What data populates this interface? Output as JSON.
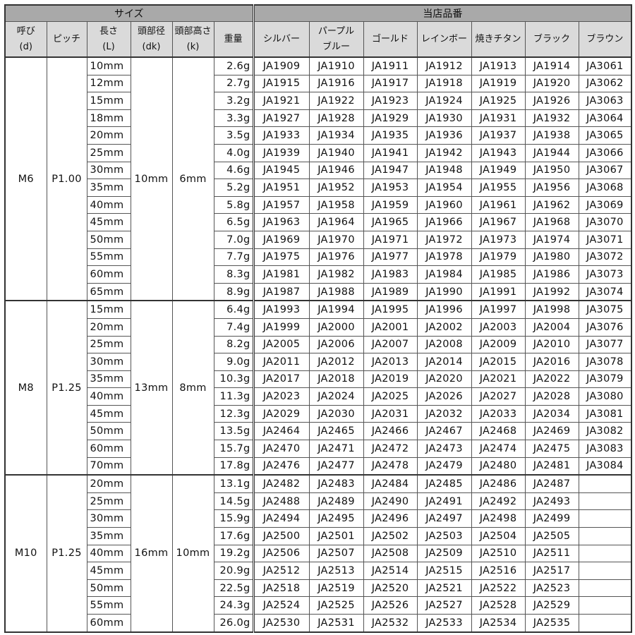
{
  "header": {
    "size_group": "サイズ",
    "code_group": "当店品番",
    "columns": {
      "nominal": [
        "呼び",
        "(d)"
      ],
      "pitch": [
        "ピッチ"
      ],
      "length": [
        "長さ",
        "(L)"
      ],
      "head_dia": [
        "頭部径",
        "(dk)"
      ],
      "head_height": [
        "頭部高さ",
        "(k)"
      ],
      "weight": [
        "重量"
      ],
      "colors": [
        [
          "シルバー"
        ],
        [
          "パープル",
          "ブルー"
        ],
        [
          "ゴールド"
        ],
        [
          "レインボー"
        ],
        [
          "焼きチタン"
        ],
        [
          "ブラック"
        ],
        [
          "ブラウン"
        ]
      ]
    }
  },
  "groups": [
    {
      "nominal": "M6",
      "pitch": "P1.00",
      "dk": "10mm",
      "k": "6mm",
      "rows": [
        {
          "length": "10mm",
          "weight": "2.6g",
          "codes": [
            "JA1909",
            "JA1910",
            "JA1911",
            "JA1912",
            "JA1913",
            "JA1914",
            "JA3061"
          ]
        },
        {
          "length": "12mm",
          "weight": "2.7g",
          "codes": [
            "JA1915",
            "JA1916",
            "JA1917",
            "JA1918",
            "JA1919",
            "JA1920",
            "JA3062"
          ]
        },
        {
          "length": "15mm",
          "weight": "3.2g",
          "codes": [
            "JA1921",
            "JA1922",
            "JA1923",
            "JA1924",
            "JA1925",
            "JA1926",
            "JA3063"
          ]
        },
        {
          "length": "18mm",
          "weight": "3.3g",
          "codes": [
            "JA1927",
            "JA1928",
            "JA1929",
            "JA1930",
            "JA1931",
            "JA1932",
            "JA3064"
          ]
        },
        {
          "length": "20mm",
          "weight": "3.5g",
          "codes": [
            "JA1933",
            "JA1934",
            "JA1935",
            "JA1936",
            "JA1937",
            "JA1938",
            "JA3065"
          ]
        },
        {
          "length": "25mm",
          "weight": "4.0g",
          "codes": [
            "JA1939",
            "JA1940",
            "JA1941",
            "JA1942",
            "JA1943",
            "JA1944",
            "JA3066"
          ]
        },
        {
          "length": "30mm",
          "weight": "4.6g",
          "codes": [
            "JA1945",
            "JA1946",
            "JA1947",
            "JA1948",
            "JA1949",
            "JA1950",
            "JA3067"
          ]
        },
        {
          "length": "35mm",
          "weight": "5.2g",
          "codes": [
            "JA1951",
            "JA1952",
            "JA1953",
            "JA1954",
            "JA1955",
            "JA1956",
            "JA3068"
          ]
        },
        {
          "length": "40mm",
          "weight": "5.8g",
          "codes": [
            "JA1957",
            "JA1958",
            "JA1959",
            "JA1960",
            "JA1961",
            "JA1962",
            "JA3069"
          ]
        },
        {
          "length": "45mm",
          "weight": "6.5g",
          "codes": [
            "JA1963",
            "JA1964",
            "JA1965",
            "JA1966",
            "JA1967",
            "JA1968",
            "JA3070"
          ]
        },
        {
          "length": "50mm",
          "weight": "7.0g",
          "codes": [
            "JA1969",
            "JA1970",
            "JA1971",
            "JA1972",
            "JA1973",
            "JA1974",
            "JA3071"
          ]
        },
        {
          "length": "55mm",
          "weight": "7.7g",
          "codes": [
            "JA1975",
            "JA1976",
            "JA1977",
            "JA1978",
            "JA1979",
            "JA1980",
            "JA3072"
          ]
        },
        {
          "length": "60mm",
          "weight": "8.3g",
          "codes": [
            "JA1981",
            "JA1982",
            "JA1983",
            "JA1984",
            "JA1985",
            "JA1986",
            "JA3073"
          ]
        },
        {
          "length": "65mm",
          "weight": "8.9g",
          "codes": [
            "JA1987",
            "JA1988",
            "JA1989",
            "JA1990",
            "JA1991",
            "JA1992",
            "JA3074"
          ]
        }
      ]
    },
    {
      "nominal": "M8",
      "pitch": "P1.25",
      "dk": "13mm",
      "k": "8mm",
      "rows": [
        {
          "length": "15mm",
          "weight": "6.4g",
          "codes": [
            "JA1993",
            "JA1994",
            "JA1995",
            "JA1996",
            "JA1997",
            "JA1998",
            "JA3075"
          ]
        },
        {
          "length": "20mm",
          "weight": "7.4g",
          "codes": [
            "JA1999",
            "JA2000",
            "JA2001",
            "JA2002",
            "JA2003",
            "JA2004",
            "JA3076"
          ]
        },
        {
          "length": "25mm",
          "weight": "8.2g",
          "codes": [
            "JA2005",
            "JA2006",
            "JA2007",
            "JA2008",
            "JA2009",
            "JA2010",
            "JA3077"
          ]
        },
        {
          "length": "30mm",
          "weight": "9.0g",
          "codes": [
            "JA2011",
            "JA2012",
            "JA2013",
            "JA2014",
            "JA2015",
            "JA2016",
            "JA3078"
          ]
        },
        {
          "length": "35mm",
          "weight": "10.3g",
          "codes": [
            "JA2017",
            "JA2018",
            "JA2019",
            "JA2020",
            "JA2021",
            "JA2022",
            "JA3079"
          ]
        },
        {
          "length": "40mm",
          "weight": "11.3g",
          "codes": [
            "JA2023",
            "JA2024",
            "JA2025",
            "JA2026",
            "JA2027",
            "JA2028",
            "JA3080"
          ]
        },
        {
          "length": "45mm",
          "weight": "12.3g",
          "codes": [
            "JA2029",
            "JA2030",
            "JA2031",
            "JA2032",
            "JA2033",
            "JA2034",
            "JA3081"
          ]
        },
        {
          "length": "50mm",
          "weight": "13.5g",
          "codes": [
            "JA2464",
            "JA2465",
            "JA2466",
            "JA2467",
            "JA2468",
            "JA2469",
            "JA3082"
          ]
        },
        {
          "length": "60mm",
          "weight": "15.7g",
          "codes": [
            "JA2470",
            "JA2471",
            "JA2472",
            "JA2473",
            "JA2474",
            "JA2475",
            "JA3083"
          ]
        },
        {
          "length": "70mm",
          "weight": "17.8g",
          "codes": [
            "JA2476",
            "JA2477",
            "JA2478",
            "JA2479",
            "JA2480",
            "JA2481",
            "JA3084"
          ]
        }
      ]
    },
    {
      "nominal": "M10",
      "pitch": "P1.25",
      "dk": "16mm",
      "k": "10mm",
      "rows": [
        {
          "length": "20mm",
          "weight": "13.1g",
          "codes": [
            "JA2482",
            "JA2483",
            "JA2484",
            "JA2485",
            "JA2486",
            "JA2487",
            ""
          ]
        },
        {
          "length": "25mm",
          "weight": "14.5g",
          "codes": [
            "JA2488",
            "JA2489",
            "JA2490",
            "JA2491",
            "JA2492",
            "JA2493",
            ""
          ]
        },
        {
          "length": "30mm",
          "weight": "15.9g",
          "codes": [
            "JA2494",
            "JA2495",
            "JA2496",
            "JA2497",
            "JA2498",
            "JA2499",
            ""
          ]
        },
        {
          "length": "35mm",
          "weight": "17.6g",
          "codes": [
            "JA2500",
            "JA2501",
            "JA2502",
            "JA2503",
            "JA2504",
            "JA2505",
            ""
          ]
        },
        {
          "length": "40mm",
          "weight": "19.2g",
          "codes": [
            "JA2506",
            "JA2507",
            "JA2508",
            "JA2509",
            "JA2510",
            "JA2511",
            ""
          ]
        },
        {
          "length": "45mm",
          "weight": "20.9g",
          "codes": [
            "JA2512",
            "JA2513",
            "JA2514",
            "JA2515",
            "JA2516",
            "JA2517",
            ""
          ]
        },
        {
          "length": "50mm",
          "weight": "22.5g",
          "codes": [
            "JA2518",
            "JA2519",
            "JA2520",
            "JA2521",
            "JA2522",
            "JA2523",
            ""
          ]
        },
        {
          "length": "55mm",
          "weight": "24.3g",
          "codes": [
            "JA2524",
            "JA2525",
            "JA2526",
            "JA2527",
            "JA2528",
            "JA2529",
            ""
          ]
        },
        {
          "length": "60mm",
          "weight": "26.0g",
          "codes": [
            "JA2530",
            "JA2531",
            "JA2532",
            "JA2533",
            "JA2534",
            "JA2535",
            ""
          ]
        }
      ]
    }
  ]
}
